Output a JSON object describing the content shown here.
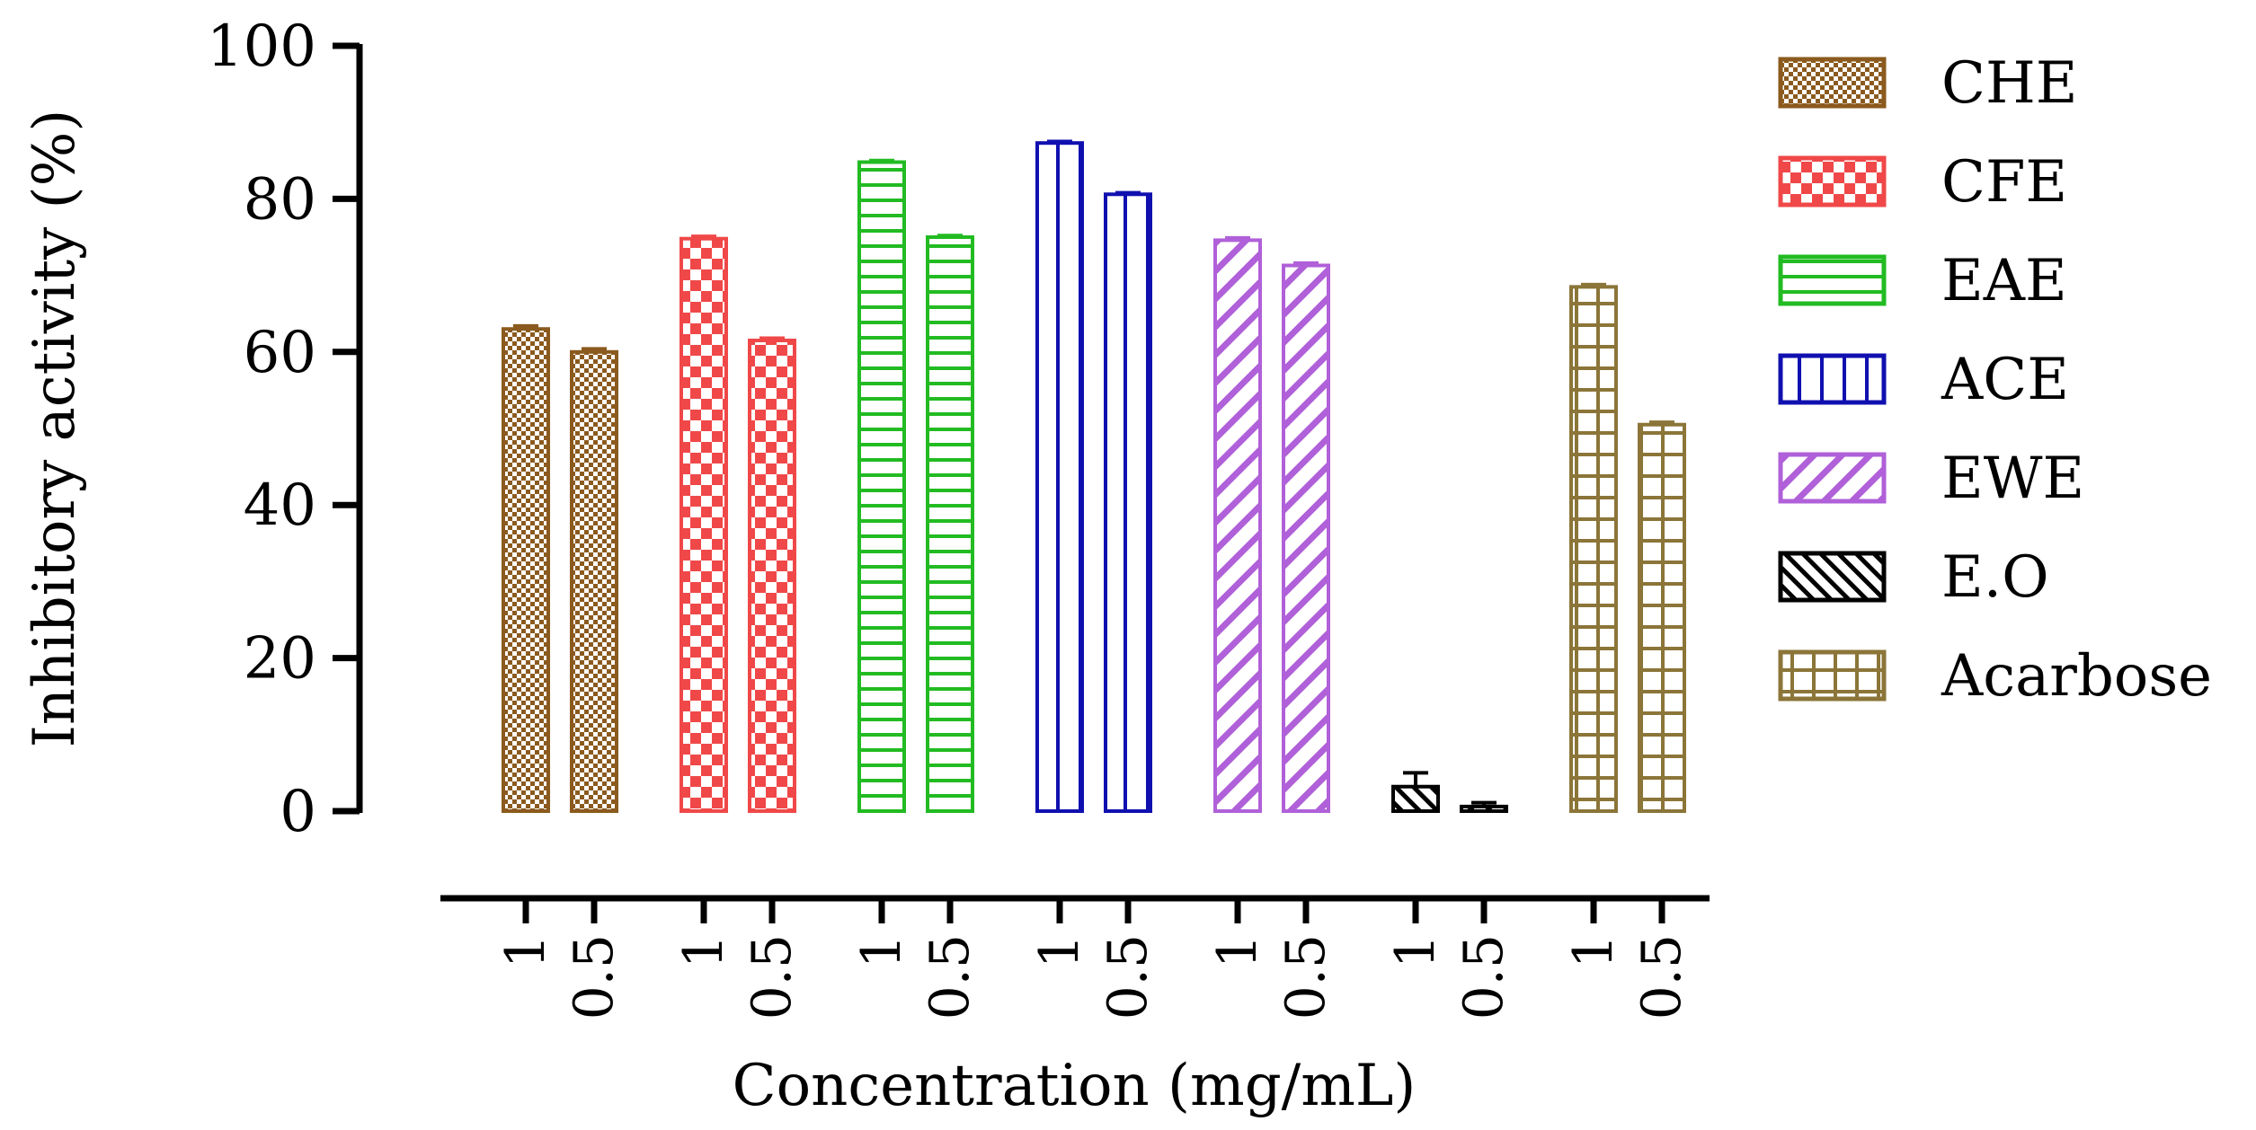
{
  "chart_data": {
    "type": "bar",
    "title": "",
    "xlabel": "Concentration (mg/mL)",
    "ylabel": "Inhibitory activity (%)",
    "ylim": [
      0,
      100
    ],
    "yticks": [
      0,
      20,
      40,
      60,
      80,
      100
    ],
    "legend_position": "right",
    "grid": false,
    "categories": [
      "1",
      "0.5"
    ],
    "series": [
      {
        "name": "CHE",
        "color": "#8B5A1E",
        "pattern": "fine-checker",
        "values": [
          63,
          60
        ],
        "errors": [
          0.4,
          0.4
        ]
      },
      {
        "name": "CFE",
        "color": "#F04848",
        "pattern": "large-checker",
        "values": [
          74.8,
          61.5
        ],
        "errors": [
          0.3,
          0.3
        ]
      },
      {
        "name": "EAE",
        "color": "#22BB22",
        "pattern": "horizontal-lines",
        "values": [
          84.8,
          75
        ],
        "errors": [
          0.2,
          0.2
        ]
      },
      {
        "name": "ACE",
        "color": "#1010B0",
        "pattern": "vertical-lines",
        "values": [
          87.3,
          80.6
        ],
        "errors": [
          0.2,
          0.2
        ]
      },
      {
        "name": "EWE",
        "color": "#B060D8",
        "pattern": "diagonal-lines",
        "values": [
          74.6,
          71.3
        ],
        "errors": [
          0.3,
          0.3
        ]
      },
      {
        "name": "E.O",
        "color": "#000000",
        "pattern": "diagonal-lines-dense",
        "values": [
          3.2,
          0.6
        ],
        "errors": [
          1.8,
          0.5
        ]
      },
      {
        "name": "Acarbose",
        "color": "#8B7538",
        "pattern": "grid",
        "values": [
          68.5,
          50.5
        ],
        "errors": [
          0.3,
          0.3
        ]
      }
    ]
  }
}
